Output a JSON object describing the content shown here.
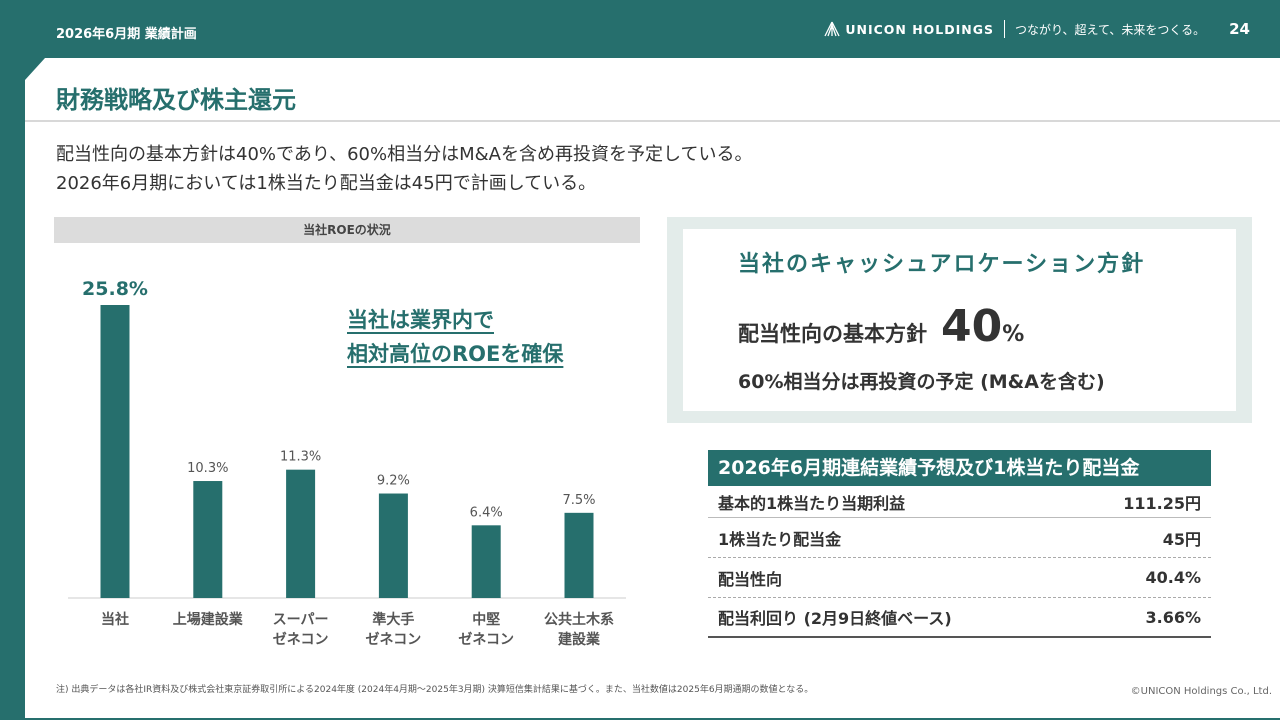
{
  "header": {
    "period": "2026年6月期 業績計画",
    "logo": "UNICON HOLDINGS",
    "tagline": "つながり、超えて、未来をつくる。",
    "page": "24"
  },
  "title": "財務戦略及び株主還元",
  "lead": [
    "配当性向の基本方針は40%であり、60%相当分はM&Aを含め再投資を予定している。",
    "2026年6月期においては1株当たり配当金は45円で計画している。"
  ],
  "chart_data": {
    "type": "bar",
    "title": "当社ROEの状況",
    "categories": [
      [
        "当社"
      ],
      [
        "上場建設業"
      ],
      [
        "スーパー",
        "ゼネコン"
      ],
      [
        "準大手",
        "ゼネコン"
      ],
      [
        "中堅",
        "ゼネコン"
      ],
      [
        "公共土木系",
        "建設業"
      ]
    ],
    "values": [
      25.8,
      10.3,
      11.3,
      9.2,
      6.4,
      7.5
    ],
    "labels": [
      "25.8%",
      "10.3%",
      "11.3%",
      "9.2%",
      "6.4%",
      "7.5%"
    ],
    "ylim": [
      0,
      30
    ],
    "color": "#266f6d",
    "grid": false
  },
  "callout": [
    "当社は業界内で",
    "相対高位のROEを確保"
  ],
  "cash": {
    "title": "当社のキャッシュアロケーション方針",
    "line1_label": "配当性向の基本方針",
    "line1_value": "40",
    "line1_unit": "%",
    "line2": "60%相当分は再投資の予定 (M&Aを含む)"
  },
  "table": {
    "title": "2026年6月期連結業績予想及び1株当たり配当金",
    "rows": [
      {
        "label": "基本的1株当たり当期利益",
        "value": "111.25円"
      },
      {
        "label": "1株当たり配当金",
        "value": "45円"
      },
      {
        "label": "配当性向",
        "value": "40.4%"
      },
      {
        "label": "配当利回り (2月9日終値ベース)",
        "value": "3.66%"
      }
    ]
  },
  "note": "注) 出典データは各社IR資料及び株式会社東京証券取引所による2024年度 (2024年4月期～2025年3月期) 決算短信集計結果に基づく。また、当社数値は2025年6月期通期の数値となる。",
  "copyright": "©UNICON Holdings Co., Ltd."
}
